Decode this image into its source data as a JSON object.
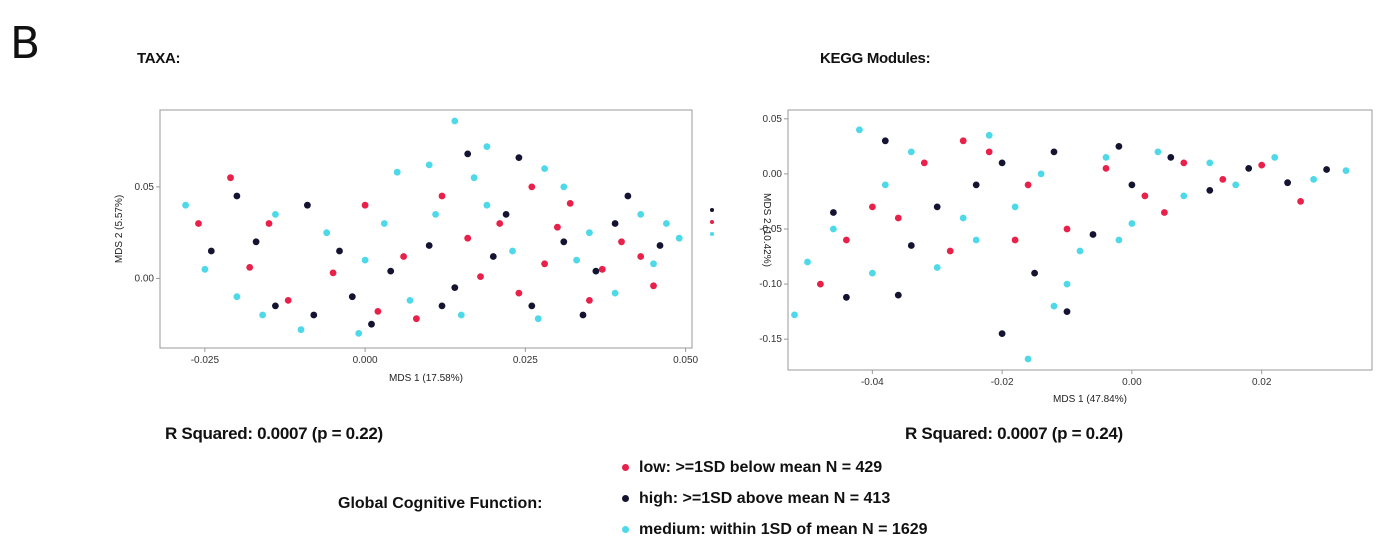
{
  "figure": {
    "panel_letter": "B",
    "legend": {
      "title": "Global Cognitive Function:",
      "items": [
        {
          "label": "low:  >=1SD below mean N = 429",
          "color": "#e8204a"
        },
        {
          "label": "high:  >=1SD above mean N = 413",
          "color": "#141432"
        },
        {
          "label": "medium:  within 1SD of mean N = 1629",
          "color": "#4dd9e8"
        }
      ]
    }
  },
  "chart_data": [
    {
      "type": "scatter",
      "title": "TAXA:",
      "xlabel": "MDS 1 (17.58%)",
      "ylabel": "MDS 2 (5.57%)",
      "xlim": [
        -0.032,
        0.051
      ],
      "ylim": [
        -0.038,
        0.092
      ],
      "xticks": [
        -0.025,
        0.0,
        0.025,
        0.05
      ],
      "xtick_labels": [
        "-0.025",
        "0.000",
        "0.025",
        "0.050"
      ],
      "yticks": [
        0.0,
        0.05
      ],
      "ytick_labels": [
        "0.00",
        "0.05"
      ],
      "grid": false,
      "annotation": "R Squared: 0.0007 (p = 0.22)",
      "series": [
        {
          "name": "low",
          "color": "#e8204a",
          "points": [
            [
              -0.021,
              0.055
            ],
            [
              -0.018,
              0.006
            ],
            [
              -0.012,
              -0.012
            ],
            [
              -0.005,
              0.003
            ],
            [
              0.002,
              -0.018
            ],
            [
              0.006,
              0.012
            ],
            [
              0.012,
              0.045
            ],
            [
              0.016,
              0.022
            ],
            [
              0.021,
              0.03
            ],
            [
              0.024,
              -0.008
            ],
            [
              0.028,
              0.008
            ],
            [
              0.032,
              0.041
            ],
            [
              0.035,
              -0.012
            ],
            [
              0.04,
              0.02
            ],
            [
              0.045,
              -0.004
            ],
            [
              -0.026,
              0.03
            ],
            [
              0.008,
              -0.022
            ],
            [
              0.018,
              0.001
            ],
            [
              0.03,
              0.028
            ],
            [
              0.043,
              0.012
            ],
            [
              -0.015,
              0.03
            ],
            [
              0.0,
              0.04
            ],
            [
              0.026,
              0.05
            ],
            [
              0.037,
              0.005
            ]
          ]
        },
        {
          "name": "high",
          "color": "#141432",
          "points": [
            [
              0.016,
              0.068
            ],
            [
              0.024,
              0.066
            ],
            [
              -0.02,
              0.045
            ],
            [
              -0.014,
              -0.015
            ],
            [
              -0.008,
              -0.02
            ],
            [
              -0.002,
              -0.01
            ],
            [
              0.004,
              0.004
            ],
            [
              0.01,
              0.018
            ],
            [
              0.014,
              -0.005
            ],
            [
              0.02,
              0.012
            ],
            [
              0.026,
              -0.015
            ],
            [
              0.031,
              0.02
            ],
            [
              0.036,
              0.004
            ],
            [
              0.041,
              0.045
            ],
            [
              0.046,
              0.018
            ],
            [
              -0.024,
              0.015
            ],
            [
              -0.017,
              0.02
            ],
            [
              -0.009,
              0.04
            ],
            [
              0.001,
              -0.025
            ],
            [
              0.022,
              0.035
            ],
            [
              0.034,
              -0.02
            ],
            [
              0.039,
              0.03
            ],
            [
              -0.004,
              0.015
            ],
            [
              0.012,
              -0.015
            ]
          ]
        },
        {
          "name": "medium",
          "color": "#4dd9e8",
          "points": [
            [
              0.014,
              0.086
            ],
            [
              0.01,
              0.062
            ],
            [
              0.005,
              0.058
            ],
            [
              0.019,
              0.072
            ],
            [
              0.028,
              0.06
            ],
            [
              -0.028,
              0.04
            ],
            [
              -0.025,
              0.005
            ],
            [
              -0.02,
              -0.01
            ],
            [
              -0.014,
              0.035
            ],
            [
              -0.01,
              -0.028
            ],
            [
              -0.006,
              0.025
            ],
            [
              -0.001,
              -0.03
            ],
            [
              0.003,
              0.03
            ],
            [
              0.007,
              -0.012
            ],
            [
              0.011,
              0.035
            ],
            [
              0.015,
              -0.02
            ],
            [
              0.019,
              0.04
            ],
            [
              0.023,
              0.015
            ],
            [
              0.027,
              -0.022
            ],
            [
              0.031,
              0.05
            ],
            [
              0.035,
              0.025
            ],
            [
              0.039,
              -0.008
            ],
            [
              0.043,
              0.035
            ],
            [
              0.047,
              0.03
            ],
            [
              0.049,
              0.022
            ],
            [
              -0.016,
              -0.02
            ],
            [
              0.0,
              0.01
            ],
            [
              0.017,
              0.055
            ],
            [
              0.033,
              0.01
            ],
            [
              0.045,
              0.008
            ]
          ]
        }
      ]
    },
    {
      "type": "scatter",
      "title": "KEGG Modules:",
      "xlabel": "MDS 1 (47.84%)",
      "ylabel": "MDS 2 (10.42%)",
      "xlim": [
        -0.053,
        0.037
      ],
      "ylim": [
        -0.178,
        0.058
      ],
      "xticks": [
        -0.04,
        -0.02,
        0.0,
        0.02
      ],
      "xtick_labels": [
        "-0.04",
        "-0.02",
        "0.00",
        "0.02"
      ],
      "yticks": [
        -0.15,
        -0.1,
        -0.05,
        0.0,
        0.05
      ],
      "ytick_labels": [
        "-0.15",
        "-0.10",
        "-0.05",
        "0.00",
        "0.05"
      ],
      "grid": false,
      "annotation": "R Squared: 0.0007 (p = 0.24)",
      "series": [
        {
          "name": "low",
          "color": "#e8204a",
          "points": [
            [
              -0.048,
              -0.1
            ],
            [
              -0.044,
              -0.06
            ],
            [
              -0.04,
              -0.03
            ],
            [
              -0.032,
              0.01
            ],
            [
              -0.028,
              -0.07
            ],
            [
              -0.022,
              0.02
            ],
            [
              -0.016,
              -0.01
            ],
            [
              -0.01,
              -0.05
            ],
            [
              -0.004,
              0.005
            ],
            [
              0.002,
              -0.02
            ],
            [
              0.008,
              0.01
            ],
            [
              0.014,
              -0.005
            ],
            [
              0.02,
              0.008
            ],
            [
              0.026,
              -0.025
            ],
            [
              -0.036,
              -0.04
            ],
            [
              -0.026,
              0.03
            ],
            [
              -0.018,
              -0.06
            ],
            [
              0.005,
              -0.035
            ]
          ]
        },
        {
          "name": "high",
          "color": "#141432",
          "points": [
            [
              -0.02,
              -0.145
            ],
            [
              -0.01,
              -0.125
            ],
            [
              -0.036,
              -0.11
            ],
            [
              -0.044,
              -0.112
            ],
            [
              -0.015,
              -0.09
            ],
            [
              -0.046,
              -0.035
            ],
            [
              -0.038,
              0.03
            ],
            [
              -0.03,
              -0.03
            ],
            [
              -0.024,
              -0.01
            ],
            [
              -0.012,
              0.02
            ],
            [
              -0.006,
              -0.055
            ],
            [
              0.0,
              -0.01
            ],
            [
              0.006,
              0.015
            ],
            [
              0.012,
              -0.015
            ],
            [
              0.018,
              0.005
            ],
            [
              0.024,
              -0.008
            ],
            [
              0.03,
              0.004
            ],
            [
              -0.034,
              -0.065
            ],
            [
              -0.02,
              0.01
            ],
            [
              -0.002,
              0.025
            ]
          ]
        },
        {
          "name": "medium",
          "color": "#4dd9e8",
          "points": [
            [
              -0.052,
              -0.128
            ],
            [
              -0.016,
              -0.168
            ],
            [
              -0.012,
              -0.12
            ],
            [
              -0.01,
              -0.1
            ],
            [
              -0.05,
              -0.08
            ],
            [
              -0.046,
              -0.05
            ],
            [
              -0.042,
              0.04
            ],
            [
              -0.038,
              -0.01
            ],
            [
              -0.034,
              0.02
            ],
            [
              -0.03,
              -0.085
            ],
            [
              -0.026,
              -0.04
            ],
            [
              -0.022,
              0.035
            ],
            [
              -0.018,
              -0.03
            ],
            [
              -0.014,
              0.0
            ],
            [
              -0.008,
              -0.07
            ],
            [
              -0.004,
              0.015
            ],
            [
              0.0,
              -0.045
            ],
            [
              0.004,
              0.02
            ],
            [
              0.008,
              -0.02
            ],
            [
              0.012,
              0.01
            ],
            [
              0.016,
              -0.01
            ],
            [
              0.022,
              0.015
            ],
            [
              0.028,
              -0.005
            ],
            [
              0.033,
              0.003
            ],
            [
              -0.04,
              -0.09
            ],
            [
              -0.024,
              -0.06
            ],
            [
              -0.002,
              -0.06
            ]
          ]
        }
      ]
    }
  ]
}
